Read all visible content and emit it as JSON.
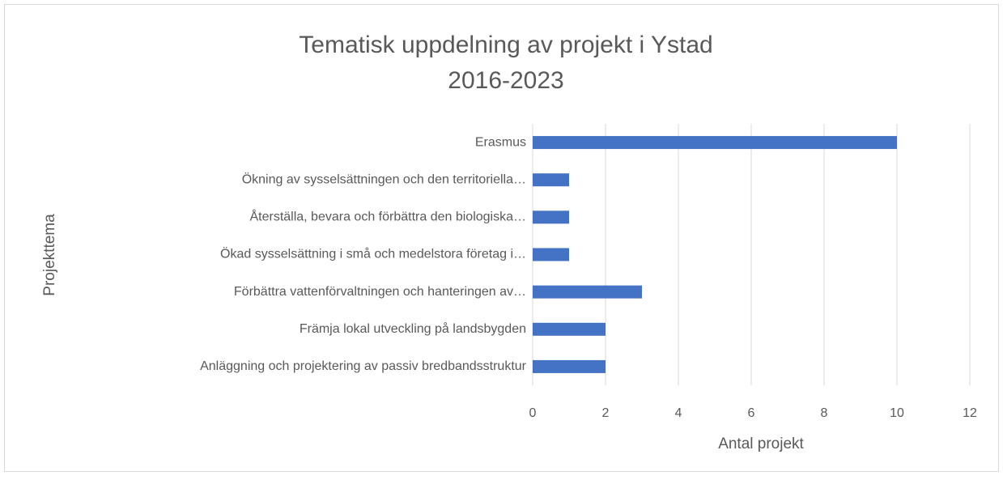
{
  "chart_data": {
    "type": "bar",
    "orientation": "horizontal",
    "title": [
      "Tematisk uppdelning av projekt i Ystad",
      "2016-2023"
    ],
    "xlabel": "Antal projekt",
    "ylabel": "Projekttema",
    "categories": [
      "Erasmus",
      "Ökning av sysselsättningen och den territoriella…",
      "Återställa, bevara och förbättra den biologiska…",
      "Ökad sysselsättning i små och medelstora företag i…",
      "Förbättra vattenförvaltningen och hanteringen av…",
      "Främja lokal utveckling på landsbygden",
      "Anläggning och projektering av passiv bredbandsstruktur"
    ],
    "values": [
      10,
      1,
      1,
      1,
      3,
      2,
      2
    ],
    "color": "#4472c4",
    "xlim": [
      0,
      12
    ],
    "xticks": [
      0,
      2,
      4,
      6,
      8,
      10,
      12
    ],
    "grid": true
  }
}
